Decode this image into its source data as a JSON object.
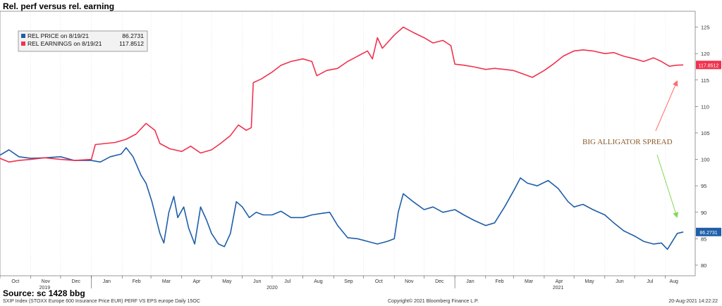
{
  "header": {
    "title": "Rel. perf versus rel. earning"
  },
  "source": "Source: sc 1428 bbg",
  "footer": {
    "left": "SXIP Index (STOXX Europe 600 Insurance Price EUR) PERF VS EPS europe  Daily 15OC",
    "center": "Copyright© 2021 Bloomberg Finance L.P.",
    "right": "20-Aug-2021 14:22:22"
  },
  "colors": {
    "price": "#1f5ea8",
    "earnings": "#f0324f",
    "annotation": "#8b5a2b",
    "arrow_red": "#ff6b6b",
    "arrow_green": "#7ed957"
  },
  "annotation": "BIG ALLIGATOR SPREAD",
  "chart_data": {
    "type": "line",
    "title": "Rel. perf versus rel. earning",
    "ylim": [
      78,
      128
    ],
    "yticks": [
      80,
      85,
      90,
      95,
      100,
      105,
      110,
      115,
      120,
      125
    ],
    "xlim": [
      "2019-10-01",
      "2021-08-31"
    ],
    "xticks": [
      {
        "date": "2019-10-01",
        "label": "Oct"
      },
      {
        "date": "2019-11-01",
        "label": "Nov"
      },
      {
        "date": "2019-12-01",
        "label": "Dec"
      },
      {
        "date": "2020-01-01",
        "label": "Jan"
      },
      {
        "date": "2020-02-01",
        "label": "Feb"
      },
      {
        "date": "2020-03-01",
        "label": "Mar"
      },
      {
        "date": "2020-04-01",
        "label": "Apr"
      },
      {
        "date": "2020-05-01",
        "label": "May"
      },
      {
        "date": "2020-06-01",
        "label": "Jun"
      },
      {
        "date": "2020-07-01",
        "label": "Jul"
      },
      {
        "date": "2020-08-01",
        "label": "Aug"
      },
      {
        "date": "2020-09-01",
        "label": "Sep"
      },
      {
        "date": "2020-10-01",
        "label": "Oct"
      },
      {
        "date": "2020-11-01",
        "label": "Nov"
      },
      {
        "date": "2020-12-01",
        "label": "Dec"
      },
      {
        "date": "2021-01-01",
        "label": "Jan"
      },
      {
        "date": "2021-02-01",
        "label": "Feb"
      },
      {
        "date": "2021-03-01",
        "label": "Mar"
      },
      {
        "date": "2021-04-01",
        "label": "Apr"
      },
      {
        "date": "2021-05-01",
        "label": "May"
      },
      {
        "date": "2021-06-01",
        "label": "Jun"
      },
      {
        "date": "2021-07-01",
        "label": "Jul"
      },
      {
        "date": "2021-08-01",
        "label": "Aug"
      }
    ],
    "years": [
      {
        "date": "2019-11-15",
        "label": "2019"
      },
      {
        "date": "2020-07-01",
        "label": "2020"
      },
      {
        "date": "2021-04-15",
        "label": "2021"
      }
    ],
    "legend": {
      "placement": "top-left",
      "entries": [
        {
          "series": "earnings",
          "label": "REL EARNINGS on 8/19/21",
          "value": "117.8512"
        },
        {
          "series": "price",
          "label": "REL PRICE on 8/19/21",
          "value": "86.2731"
        }
      ]
    },
    "series": [
      {
        "name": "REL PRICE",
        "key": "price",
        "last_label": "86.2731",
        "points": [
          [
            "2019-10-01",
            100.8
          ],
          [
            "2019-10-10",
            101.8
          ],
          [
            "2019-10-20",
            100.5
          ],
          [
            "2019-11-01",
            100.2
          ],
          [
            "2019-11-15",
            100.3
          ],
          [
            "2019-12-01",
            100.5
          ],
          [
            "2019-12-15",
            99.8
          ],
          [
            "2020-01-01",
            99.8
          ],
          [
            "2020-01-10",
            99.5
          ],
          [
            "2020-01-20",
            100.5
          ],
          [
            "2020-01-31",
            101.0
          ],
          [
            "2020-02-05",
            102.2
          ],
          [
            "2020-02-12",
            100.5
          ],
          [
            "2020-02-20",
            97.0
          ],
          [
            "2020-02-25",
            95.5
          ],
          [
            "2020-03-02",
            92.0
          ],
          [
            "2020-03-06",
            89.0
          ],
          [
            "2020-03-10",
            86.0
          ],
          [
            "2020-03-14",
            84.2
          ],
          [
            "2020-03-19",
            90.0
          ],
          [
            "2020-03-24",
            93.0
          ],
          [
            "2020-03-28",
            89.0
          ],
          [
            "2020-04-03",
            91.0
          ],
          [
            "2020-04-08",
            87.0
          ],
          [
            "2020-04-14",
            84.0
          ],
          [
            "2020-04-20",
            91.0
          ],
          [
            "2020-04-26",
            88.5
          ],
          [
            "2020-05-01",
            86.0
          ],
          [
            "2020-05-08",
            84.0
          ],
          [
            "2020-05-14",
            83.5
          ],
          [
            "2020-05-20",
            86.0
          ],
          [
            "2020-05-26",
            92.0
          ],
          [
            "2020-06-01",
            91.0
          ],
          [
            "2020-06-08",
            89.0
          ],
          [
            "2020-06-15",
            90.0
          ],
          [
            "2020-06-22",
            89.5
          ],
          [
            "2020-07-01",
            89.5
          ],
          [
            "2020-07-10",
            90.2
          ],
          [
            "2020-07-20",
            89.0
          ],
          [
            "2020-08-01",
            89.0
          ],
          [
            "2020-08-10",
            89.5
          ],
          [
            "2020-08-20",
            89.8
          ],
          [
            "2020-08-28",
            90.0
          ],
          [
            "2020-09-05",
            87.5
          ],
          [
            "2020-09-15",
            85.2
          ],
          [
            "2020-09-25",
            85.0
          ],
          [
            "2020-10-05",
            84.5
          ],
          [
            "2020-10-15",
            84.0
          ],
          [
            "2020-10-25",
            84.5
          ],
          [
            "2020-11-01",
            85.0
          ],
          [
            "2020-11-05",
            90.0
          ],
          [
            "2020-11-10",
            93.5
          ],
          [
            "2020-11-20",
            92.0
          ],
          [
            "2020-12-01",
            90.5
          ],
          [
            "2020-12-10",
            91.0
          ],
          [
            "2020-12-20",
            90.0
          ],
          [
            "2021-01-01",
            90.5
          ],
          [
            "2021-01-10",
            89.5
          ],
          [
            "2021-01-20",
            88.5
          ],
          [
            "2021-02-01",
            87.5
          ],
          [
            "2021-02-10",
            88.0
          ],
          [
            "2021-02-20",
            91.0
          ],
          [
            "2021-03-01",
            94.0
          ],
          [
            "2021-03-08",
            96.5
          ],
          [
            "2021-03-15",
            95.5
          ],
          [
            "2021-03-25",
            95.0
          ],
          [
            "2021-04-05",
            96.0
          ],
          [
            "2021-04-15",
            94.5
          ],
          [
            "2021-04-25",
            92.0
          ],
          [
            "2021-05-01",
            91.0
          ],
          [
            "2021-05-10",
            91.5
          ],
          [
            "2021-05-20",
            90.5
          ],
          [
            "2021-06-01",
            89.5
          ],
          [
            "2021-06-10",
            88.0
          ],
          [
            "2021-06-20",
            86.5
          ],
          [
            "2021-07-01",
            85.5
          ],
          [
            "2021-07-10",
            84.5
          ],
          [
            "2021-07-20",
            84.0
          ],
          [
            "2021-07-28",
            84.2
          ],
          [
            "2021-08-03",
            83.0
          ],
          [
            "2021-08-08",
            84.5
          ],
          [
            "2021-08-13",
            86.0
          ],
          [
            "2021-08-19",
            86.2731
          ]
        ]
      },
      {
        "name": "REL EARNINGS",
        "key": "earnings",
        "last_label": "117.8512",
        "points": [
          [
            "2019-10-01",
            100.2
          ],
          [
            "2019-10-10",
            99.5
          ],
          [
            "2019-10-20",
            99.8
          ],
          [
            "2019-11-01",
            100.0
          ],
          [
            "2019-11-15",
            100.3
          ],
          [
            "2019-12-01",
            100.0
          ],
          [
            "2019-12-15",
            99.8
          ],
          [
            "2020-01-01",
            100.0
          ],
          [
            "2020-01-05",
            102.8
          ],
          [
            "2020-01-15",
            103.0
          ],
          [
            "2020-01-25",
            103.2
          ],
          [
            "2020-02-05",
            103.8
          ],
          [
            "2020-02-15",
            104.8
          ],
          [
            "2020-02-25",
            106.8
          ],
          [
            "2020-03-05",
            105.5
          ],
          [
            "2020-03-10",
            103.0
          ],
          [
            "2020-03-20",
            102.0
          ],
          [
            "2020-04-01",
            101.5
          ],
          [
            "2020-04-10",
            102.5
          ],
          [
            "2020-04-20",
            101.2
          ],
          [
            "2020-05-01",
            101.8
          ],
          [
            "2020-05-10",
            103.0
          ],
          [
            "2020-05-20",
            104.5
          ],
          [
            "2020-05-28",
            106.5
          ],
          [
            "2020-06-05",
            105.5
          ],
          [
            "2020-06-10",
            106.0
          ],
          [
            "2020-06-12",
            114.5
          ],
          [
            "2020-06-20",
            115.2
          ],
          [
            "2020-07-01",
            116.5
          ],
          [
            "2020-07-10",
            117.8
          ],
          [
            "2020-07-20",
            118.5
          ],
          [
            "2020-08-01",
            119.0
          ],
          [
            "2020-08-10",
            118.5
          ],
          [
            "2020-08-15",
            115.8
          ],
          [
            "2020-08-25",
            116.8
          ],
          [
            "2020-09-05",
            117.2
          ],
          [
            "2020-09-15",
            118.5
          ],
          [
            "2020-09-25",
            119.5
          ],
          [
            "2020-10-05",
            120.5
          ],
          [
            "2020-10-10",
            119.0
          ],
          [
            "2020-10-15",
            123.0
          ],
          [
            "2020-10-20",
            121.0
          ],
          [
            "2020-11-01",
            123.5
          ],
          [
            "2020-11-10",
            125.0
          ],
          [
            "2020-11-20",
            124.0
          ],
          [
            "2020-12-01",
            123.0
          ],
          [
            "2020-12-10",
            122.0
          ],
          [
            "2020-12-20",
            122.5
          ],
          [
            "2020-12-28",
            121.5
          ],
          [
            "2021-01-01",
            118.0
          ],
          [
            "2021-01-10",
            117.8
          ],
          [
            "2021-01-20",
            117.5
          ],
          [
            "2021-02-01",
            117.0
          ],
          [
            "2021-02-10",
            117.2
          ],
          [
            "2021-02-20",
            117.0
          ],
          [
            "2021-03-01",
            116.8
          ],
          [
            "2021-03-10",
            116.2
          ],
          [
            "2021-03-20",
            115.5
          ],
          [
            "2021-04-01",
            116.8
          ],
          [
            "2021-04-10",
            118.0
          ],
          [
            "2021-04-20",
            119.5
          ],
          [
            "2021-05-01",
            120.5
          ],
          [
            "2021-05-10",
            120.7
          ],
          [
            "2021-05-20",
            120.5
          ],
          [
            "2021-06-01",
            120.0
          ],
          [
            "2021-06-10",
            120.2
          ],
          [
            "2021-06-20",
            119.5
          ],
          [
            "2021-07-01",
            119.0
          ],
          [
            "2021-07-10",
            118.5
          ],
          [
            "2021-07-20",
            119.2
          ],
          [
            "2021-07-28",
            118.5
          ],
          [
            "2021-08-05",
            117.6
          ],
          [
            "2021-08-12",
            117.8
          ],
          [
            "2021-08-19",
            117.8512
          ]
        ]
      }
    ]
  }
}
